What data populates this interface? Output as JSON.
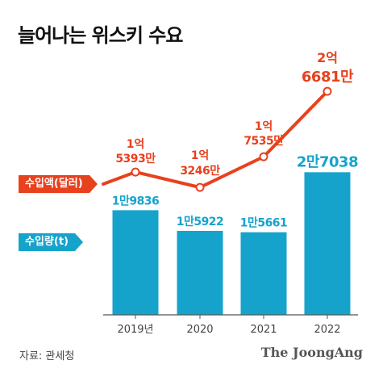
{
  "title": "늘어나는 위스키 수요",
  "source": "자료: 관세청",
  "logo": "The JoongAng",
  "colors": {
    "bar": "#15a3cc",
    "line": "#e8411e",
    "axis": "#555555"
  },
  "chart_data": {
    "type": "bar",
    "categories": [
      "2019년",
      "2020",
      "2021",
      "2022"
    ],
    "series": [
      {
        "name": "수입량(t)",
        "type": "bar",
        "values": [
          19836,
          15922,
          15661,
          27038
        ],
        "labels": [
          "1만9836",
          "1만5922",
          "1만5661",
          "2만7038"
        ]
      },
      {
        "name": "수입액(달러)",
        "type": "line",
        "values": [
          153930000,
          132460000,
          175350000,
          266810000
        ],
        "labels": [
          [
            "1억",
            "5393만"
          ],
          [
            "1억",
            "3246만"
          ],
          [
            "1억",
            "7535만"
          ],
          [
            "2억",
            "6681만"
          ]
        ]
      }
    ]
  }
}
